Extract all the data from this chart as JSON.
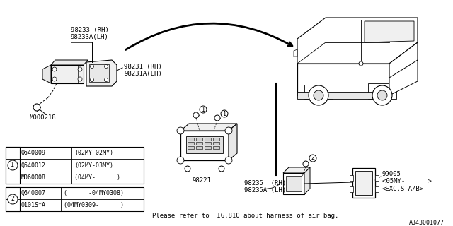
{
  "bg_color": "#ffffff",
  "fig_width": 6.4,
  "fig_height": 3.2,
  "diagram_id": "A343001077",
  "note_text": "Please refer to FIG.810 about harness of air bag.",
  "labels": {
    "part1_top": "98233 (RH)",
    "part1_bot": "98233A(LH)",
    "part2_top": "98231 (RH)",
    "part2_bot": "98231A(LH)",
    "part3": "M000218",
    "part4": "98221",
    "part5_top": "98235  (RH)",
    "part5_bot": "98235A (LH)",
    "part6_top": "99005",
    "part6_mid": "<05MY-      >",
    "part6_bot": "<EXC.S-A/B>"
  },
  "table1": {
    "circle_label": "1",
    "rows": [
      [
        "Q640009",
        "(02MY-02MY)"
      ],
      [
        "Q640012",
        "(02MY-03MY)"
      ],
      [
        "M060008",
        "(04MY-      )"
      ]
    ]
  },
  "table2": {
    "circle_label": "2",
    "rows": [
      [
        "Q640007",
        "(      -04MY0308)"
      ],
      [
        "0101S*A",
        "(04MY0309-      )"
      ]
    ]
  }
}
